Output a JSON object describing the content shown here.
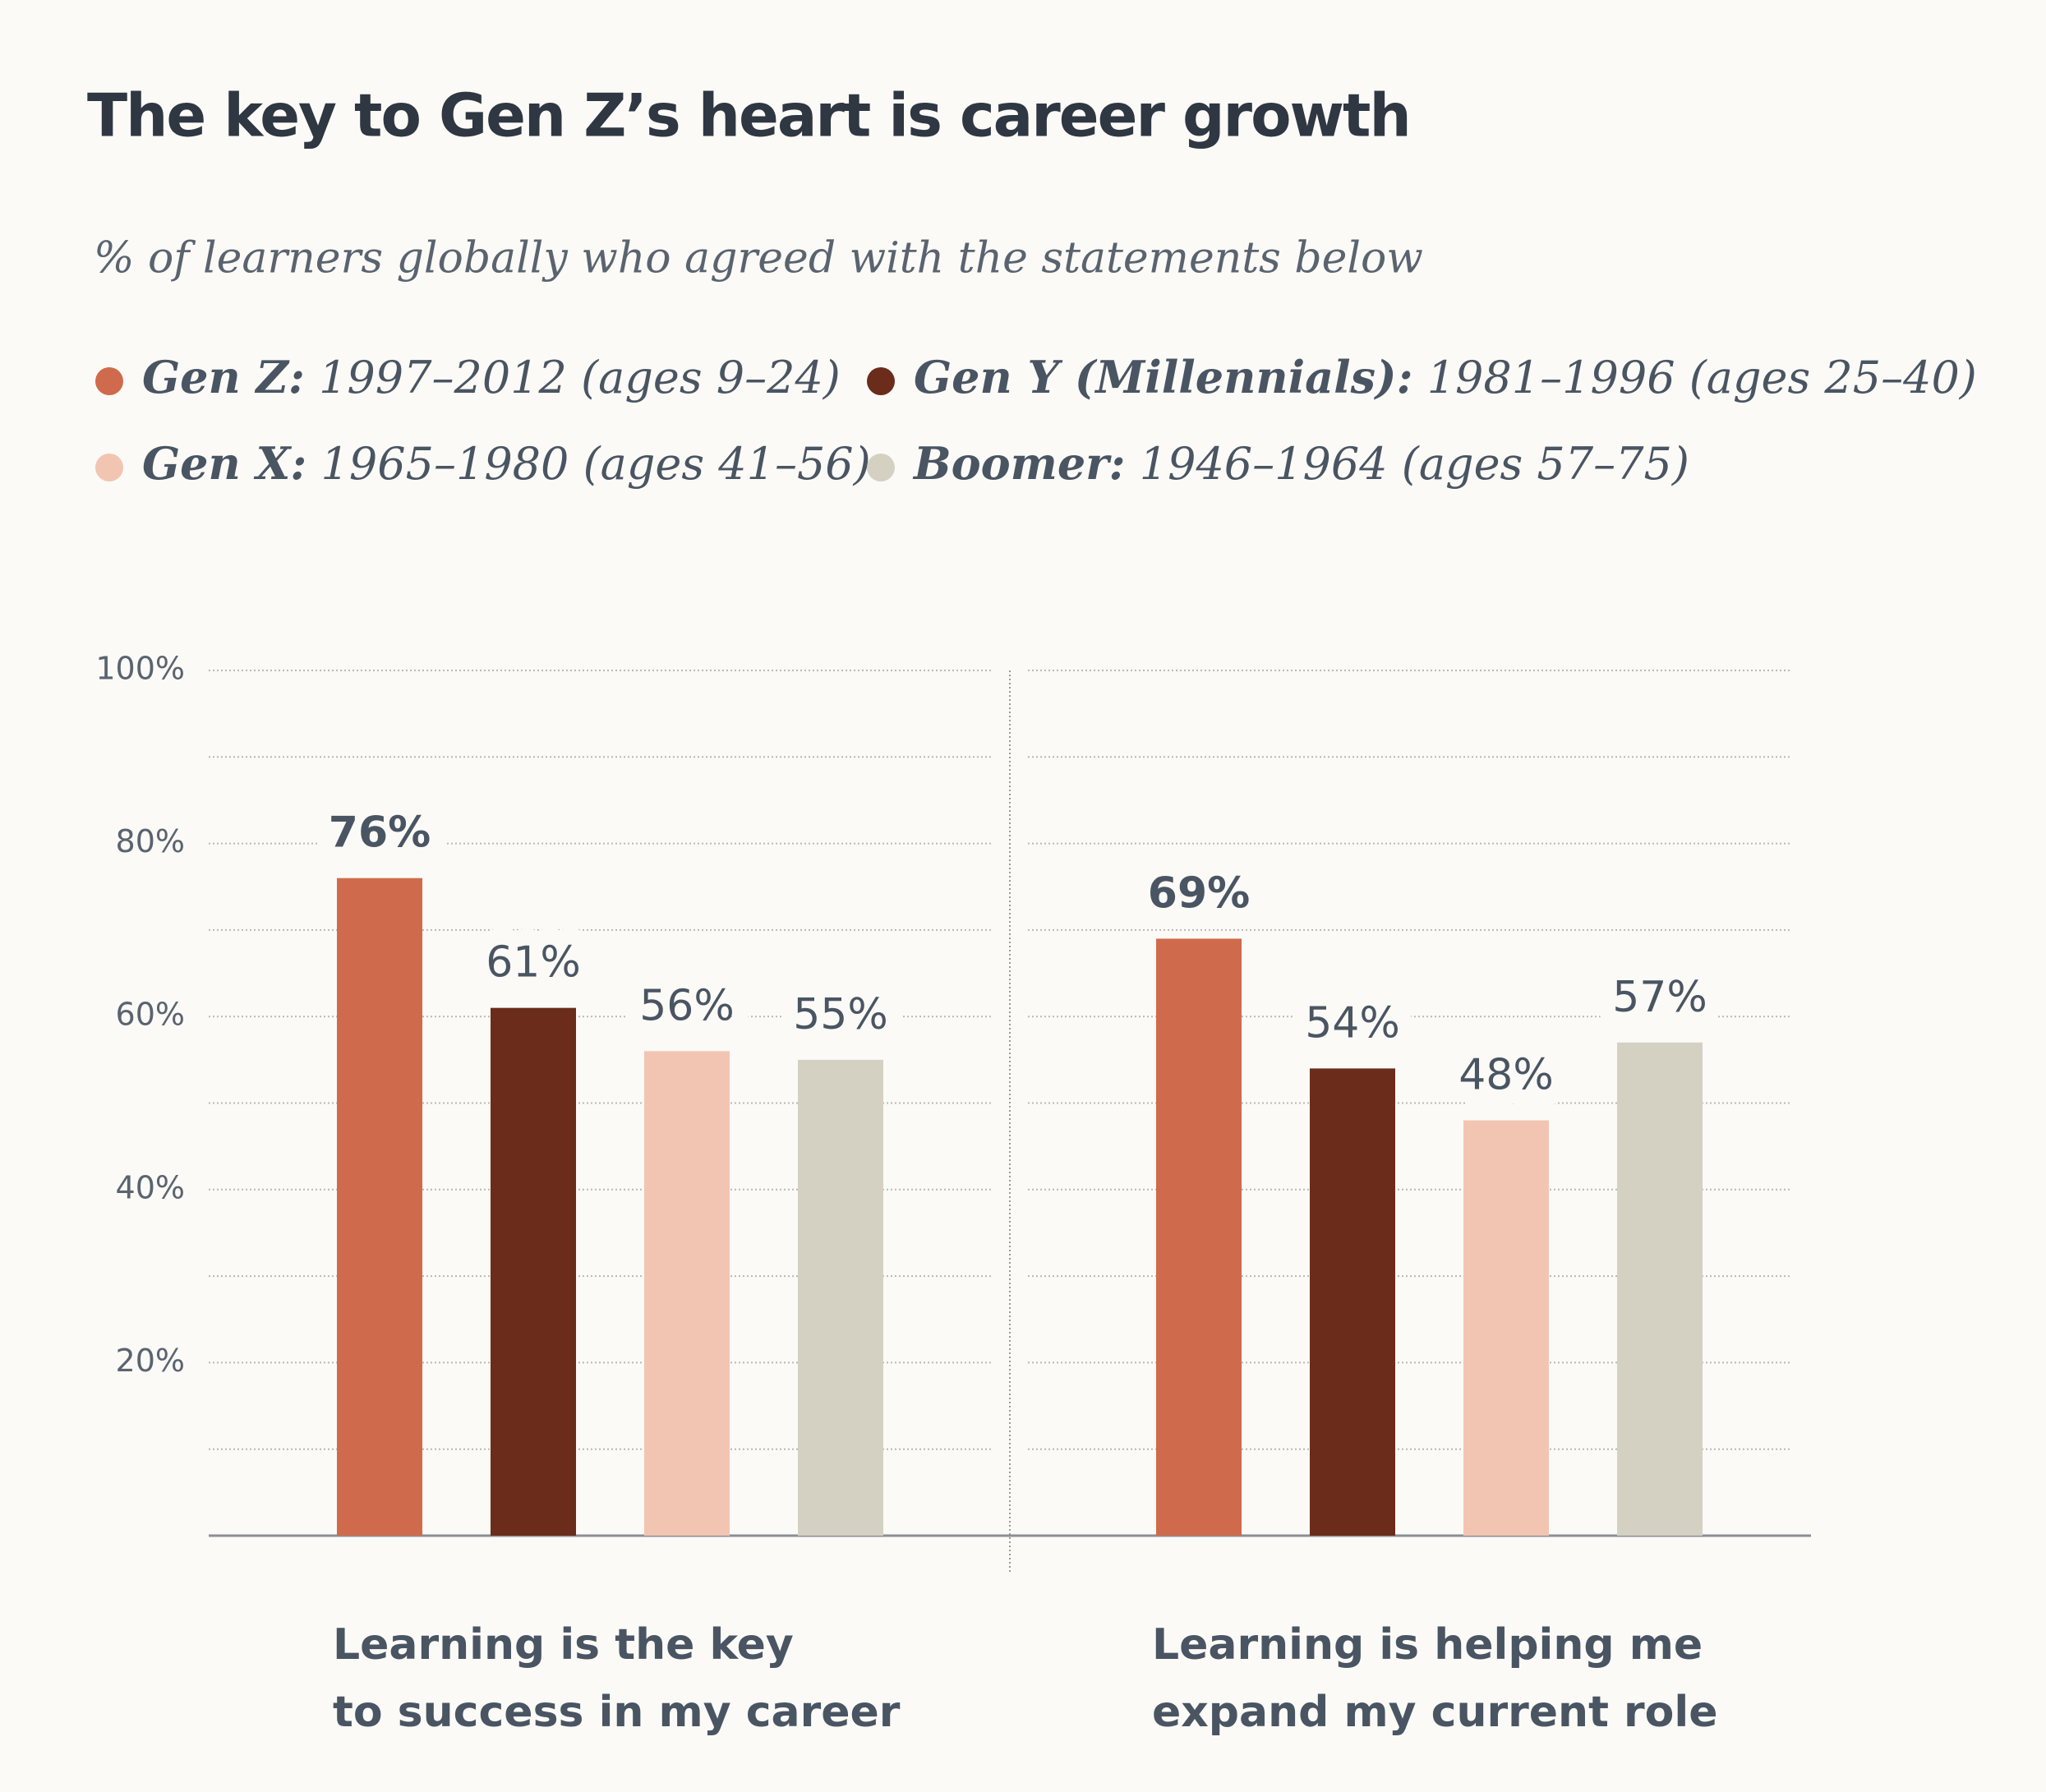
{
  "chart_data": {
    "type": "bar",
    "title": "The key to Gen Z’s heart is career growth",
    "subtitle": "% of learners globally who agreed with the statements below",
    "categories": [
      "Learning is the key\nto success in my career",
      "Learning is helping me\nexpand my current role"
    ],
    "series": [
      {
        "name": "Gen Z:",
        "description": "1997–2012 (ages 9–24)",
        "color": "#cf6b4c",
        "values": [
          76,
          69
        ],
        "value_labels": [
          "76%",
          "69%"
        ],
        "label_bold": true
      },
      {
        "name": "Gen Y (Millennials):",
        "description": "1981–1996 (ages 25–40)",
        "color": "#6b2c1b",
        "values": [
          61,
          54
        ],
        "value_labels": [
          "61%",
          "54%"
        ]
      },
      {
        "name": "Gen X:",
        "description": "1965–1980 (ages 41–56)",
        "color": "#f2c5b2",
        "values": [
          56,
          48
        ],
        "value_labels": [
          "56%",
          "48%"
        ]
      },
      {
        "name": "Boomer:",
        "description": "1946–1964 (ages 57–75)",
        "color": "#d5d1c2",
        "values": [
          55,
          57
        ],
        "value_labels": [
          "55%",
          "57%"
        ]
      }
    ],
    "ylim": [
      0,
      100
    ],
    "yticks": [
      {
        "value": 20,
        "label": "20%"
      },
      {
        "value": 40,
        "label": "40%"
      },
      {
        "value": 60,
        "label": "60%"
      },
      {
        "value": 80,
        "label": "80%"
      },
      {
        "value": 100,
        "label": "100%"
      }
    ],
    "minor_yticks": [
      10,
      30,
      50,
      70,
      90
    ],
    "grid": true
  }
}
